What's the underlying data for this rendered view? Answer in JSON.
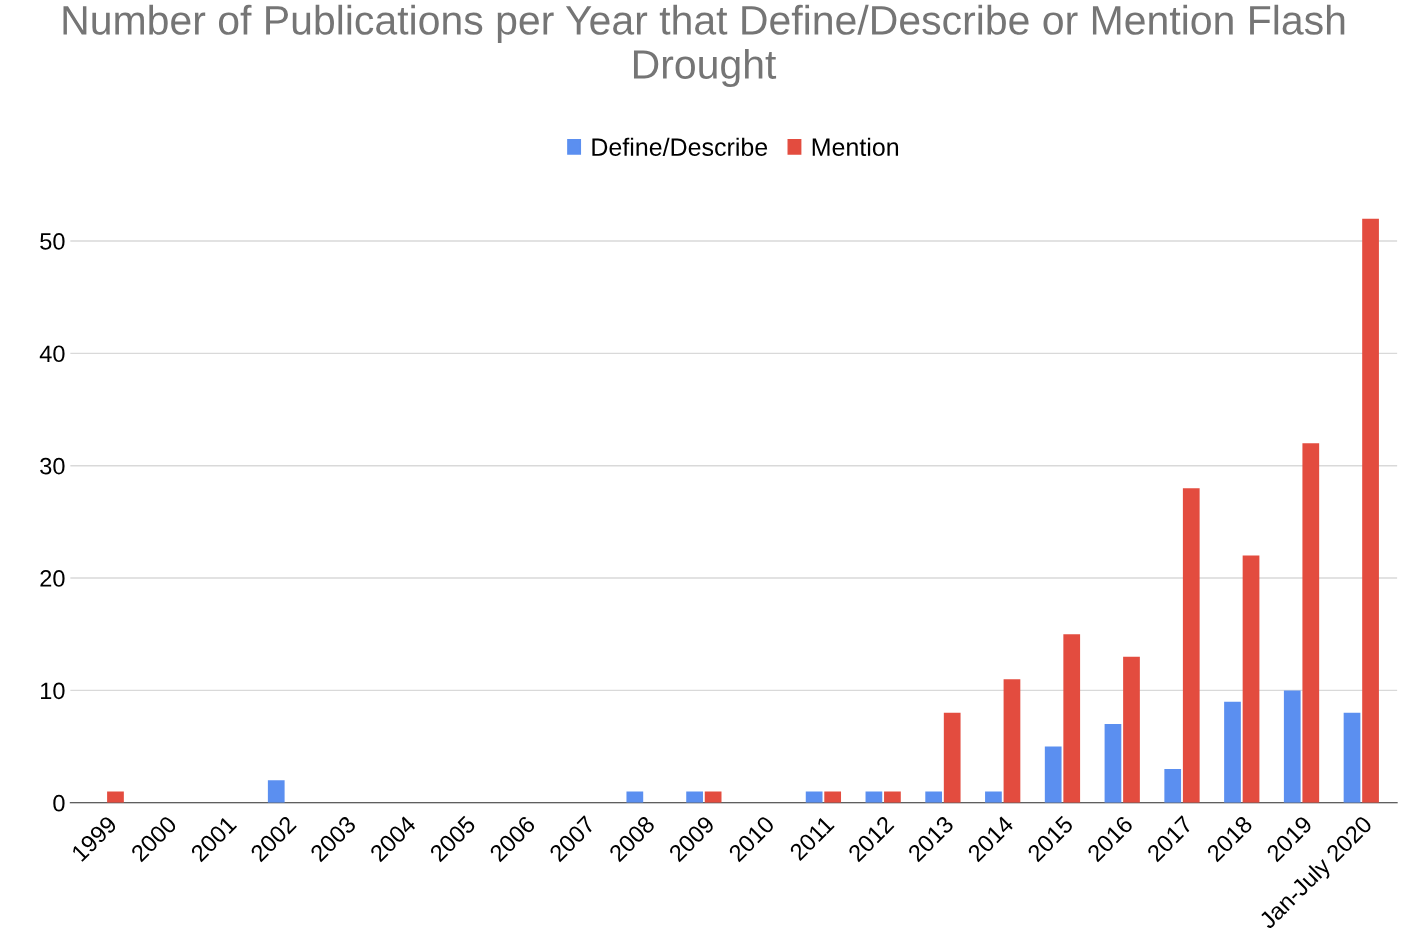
{
  "chart_data": {
    "type": "bar",
    "title": "Number of Publications per Year that Define/Describe or Mention Flash Drought",
    "categories": [
      "1999",
      "2000",
      "2001",
      "2002",
      "2003",
      "2004",
      "2005",
      "2006",
      "2007",
      "2008",
      "2009",
      "2010",
      "2011",
      "2012",
      "2013",
      "2014",
      "2015",
      "2016",
      "2017",
      "2018",
      "2019",
      "Jan-July 2020"
    ],
    "series": [
      {
        "name": "Define/Describe",
        "color": "#5b8ff0",
        "values": [
          0,
          0,
          0,
          2,
          0,
          0,
          0,
          0,
          0,
          1,
          1,
          0,
          1,
          1,
          1,
          1,
          5,
          7,
          3,
          9,
          10,
          8
        ]
      },
      {
        "name": "Mention",
        "color": "#e34c3f",
        "values": [
          1,
          0,
          0,
          0,
          0,
          0,
          0,
          0,
          0,
          0,
          1,
          0,
          1,
          1,
          8,
          11,
          15,
          13,
          28,
          22,
          32,
          52
        ]
      }
    ],
    "ylim": [
      0,
      52
    ],
    "yticks": [
      0,
      10,
      20,
      30,
      40,
      50
    ],
    "grid": "y",
    "legend": "top"
  }
}
